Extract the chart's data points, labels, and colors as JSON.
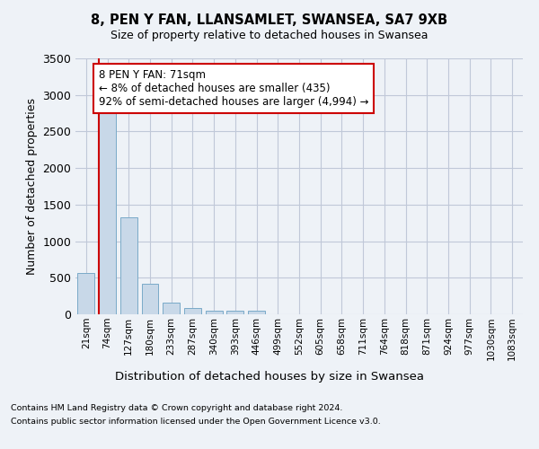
{
  "title_line1": "8, PEN Y FAN, LLANSAMLET, SWANSEA, SA7 9XB",
  "title_line2": "Size of property relative to detached houses in Swansea",
  "xlabel": "Distribution of detached houses by size in Swansea",
  "ylabel": "Number of detached properties",
  "categories": [
    "21sqm",
    "74sqm",
    "127sqm",
    "180sqm",
    "233sqm",
    "287sqm",
    "340sqm",
    "393sqm",
    "446sqm",
    "499sqm",
    "552sqm",
    "605sqm",
    "658sqm",
    "711sqm",
    "764sqm",
    "818sqm",
    "871sqm",
    "924sqm",
    "977sqm",
    "1030sqm",
    "1083sqm"
  ],
  "values": [
    565,
    2920,
    1330,
    415,
    165,
    80,
    50,
    45,
    45,
    0,
    0,
    0,
    0,
    0,
    0,
    0,
    0,
    0,
    0,
    0,
    0
  ],
  "bar_color": "#c8d8e8",
  "bar_edge_color": "#7aaac8",
  "highlight_line_color": "#cc0000",
  "highlight_bar_index": 1,
  "annotation_text": "8 PEN Y FAN: 71sqm\n← 8% of detached houses are smaller (435)\n92% of semi-detached houses are larger (4,994) →",
  "annotation_box_color": "#ffffff",
  "annotation_border_color": "#cc0000",
  "ylim": [
    0,
    3500
  ],
  "yticks": [
    0,
    500,
    1000,
    1500,
    2000,
    2500,
    3000,
    3500
  ],
  "footnote1": "Contains HM Land Registry data © Crown copyright and database right 2024.",
  "footnote2": "Contains public sector information licensed under the Open Government Licence v3.0.",
  "bg_color": "#eef2f7",
  "plot_bg_color": "#eef2f7",
  "grid_color": "#c0c8d8"
}
